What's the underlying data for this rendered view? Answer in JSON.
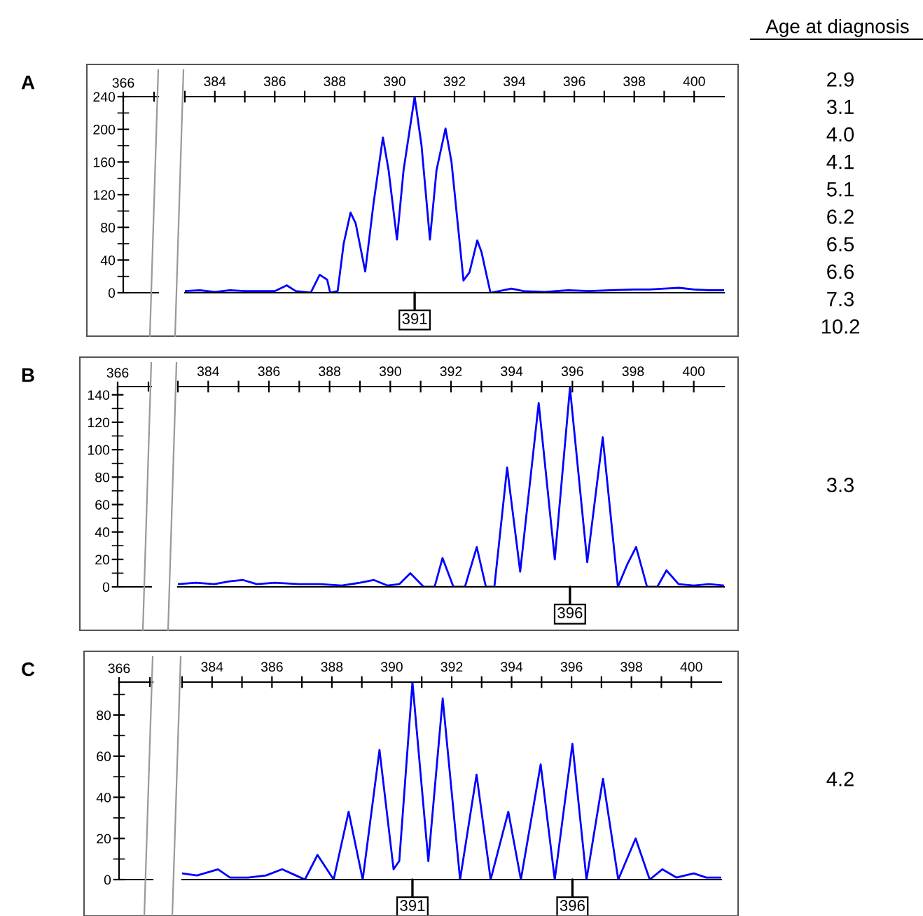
{
  "chart_data": [
    {
      "type": "line",
      "title": "A",
      "x": [
        383,
        383.5,
        384,
        384.5,
        385,
        385.5,
        386,
        386.4,
        386.7,
        387.2,
        387.5,
        387.75,
        387.85,
        388.1,
        388.3,
        388.53,
        388.7,
        389.02,
        389.3,
        389.61,
        389.8,
        390.08,
        390.3,
        390.67,
        390.9,
        391.18,
        391.4,
        391.7,
        391.9,
        392.3,
        392.5,
        392.76,
        392.9,
        393.2,
        393.5,
        393.9,
        394.3,
        395,
        395.8,
        396.5,
        397.2,
        398,
        398.5,
        399,
        399.5,
        400,
        400.5,
        401
      ],
      "series": [
        {
          "color": "#0000ff",
          "values": [
            2,
            3,
            1,
            3,
            2,
            2,
            2,
            9,
            2,
            0,
            22,
            16,
            0,
            2,
            60,
            98,
            85,
            26,
            110,
            190,
            150,
            65,
            150,
            240,
            180,
            65,
            150,
            201,
            160,
            15,
            25,
            64,
            50,
            0,
            2,
            5,
            2,
            1,
            3,
            2,
            3,
            4,
            4,
            5,
            6,
            4,
            3,
            3
          ]
        }
      ],
      "xlim": [
        383,
        401
      ],
      "xticks": [
        {
          "value": 383,
          "label": null
        },
        384,
        {
          "value": 385,
          "label": null
        },
        386,
        {
          "value": 387,
          "label": null
        },
        388,
        {
          "value": 389,
          "label": null
        },
        390,
        {
          "value": 391,
          "label": null
        },
        392,
        {
          "value": 393,
          "label": null
        },
        394,
        {
          "value": 395,
          "label": null
        },
        396,
        {
          "value": 397,
          "label": null
        },
        398,
        {
          "value": 399,
          "label": null
        },
        400
      ],
      "ylim": [
        0,
        240
      ],
      "yticks": [
        0,
        40,
        80,
        120,
        160,
        200,
        240
      ],
      "annotations": [
        "366",
        "Age at diagnosis",
        "2.9",
        "3.1",
        "4.0",
        "4.1",
        "5.1",
        "6.2",
        "6.5",
        "6.6",
        "7.3",
        "10.2",
        {
          "text": "391",
          "x": 390.67
        }
      ]
    },
    {
      "type": "line",
      "title": "B",
      "x": [
        383,
        383.6,
        384.2,
        384.7,
        385.15,
        385.6,
        386.2,
        387,
        387.7,
        388.4,
        389,
        389.46,
        389.9,
        390.3,
        390.66,
        391.1,
        391.46,
        391.72,
        392.08,
        392.46,
        392.85,
        393.15,
        393.43,
        393.85,
        394.28,
        394.89,
        395.42,
        395.92,
        396.49,
        397,
        397.5,
        397.8,
        398.1,
        398.46,
        398.8,
        399.1,
        399.5,
        400,
        400.5,
        401
      ],
      "series": [
        {
          "color": "#0000ff",
          "values": [
            2,
            3,
            2,
            4,
            5,
            2,
            3,
            2,
            2,
            1,
            3,
            5,
            1,
            2,
            10,
            0,
            0,
            21,
            0,
            0,
            29,
            0,
            0,
            87,
            11,
            134,
            20,
            145,
            18,
            109,
            0,
            16,
            29,
            0,
            0,
            12,
            2,
            1,
            2,
            1
          ]
        }
      ],
      "xlim": [
        383,
        401
      ],
      "xticks": [
        {
          "value": 383,
          "label": null
        },
        384,
        {
          "value": 385,
          "label": null
        },
        386,
        {
          "value": 387,
          "label": null
        },
        388,
        {
          "value": 389,
          "label": null
        },
        390,
        {
          "value": 391,
          "label": null
        },
        392,
        {
          "value": 393,
          "label": null
        },
        394,
        {
          "value": 395,
          "label": null
        },
        396,
        {
          "value": 397,
          "label": null
        },
        398,
        {
          "value": 399,
          "label": null
        },
        400
      ],
      "ylim": [
        0,
        146
      ],
      "yticks": [
        0,
        20,
        40,
        60,
        80,
        100,
        120,
        140
      ],
      "annotations": [
        "366",
        "3.3",
        {
          "text": "396",
          "x": 395.92
        }
      ]
    },
    {
      "type": "line",
      "title": "C",
      "x": [
        383,
        383.5,
        384.2,
        384.6,
        385.2,
        385.8,
        386.34,
        386.8,
        387.1,
        387.52,
        388.06,
        388.56,
        389.03,
        389.59,
        390.06,
        390.25,
        390.69,
        391.22,
        391.7,
        392.28,
        392.83,
        393.3,
        393.89,
        394.31,
        394.97,
        395.44,
        396.03,
        396.5,
        397.05,
        397.56,
        398.14,
        398.61,
        399.03,
        399.5,
        400.08,
        400.5,
        401
      ],
      "series": [
        {
          "color": "#0000ff",
          "values": [
            3,
            2,
            5,
            1,
            1,
            2,
            5,
            2,
            0,
            12,
            0,
            33,
            0,
            63,
            5,
            9,
            96,
            9,
            88,
            0,
            51,
            0,
            33,
            0,
            56,
            0,
            66,
            0,
            49,
            0,
            20,
            0,
            5,
            1,
            3,
            1,
            1
          ]
        }
      ],
      "xlim": [
        383,
        401
      ],
      "xticks": [
        {
          "value": 383,
          "label": null
        },
        384,
        {
          "value": 385,
          "label": null
        },
        386,
        {
          "value": 387,
          "label": null
        },
        388,
        {
          "value": 389,
          "label": null
        },
        390,
        {
          "value": 391,
          "label": null
        },
        392,
        {
          "value": 393,
          "label": null
        },
        394,
        {
          "value": 395,
          "label": null
        },
        396,
        {
          "value": 397,
          "label": null
        },
        398,
        {
          "value": 399,
          "label": null
        },
        400
      ],
      "ylim": [
        0,
        96
      ],
      "yticks": [
        0,
        20,
        40,
        60,
        80
      ],
      "annotations": [
        "366",
        "4.2",
        {
          "text": "391",
          "x": 390.69
        },
        {
          "text": "396",
          "x": 396.03
        }
      ]
    }
  ]
}
